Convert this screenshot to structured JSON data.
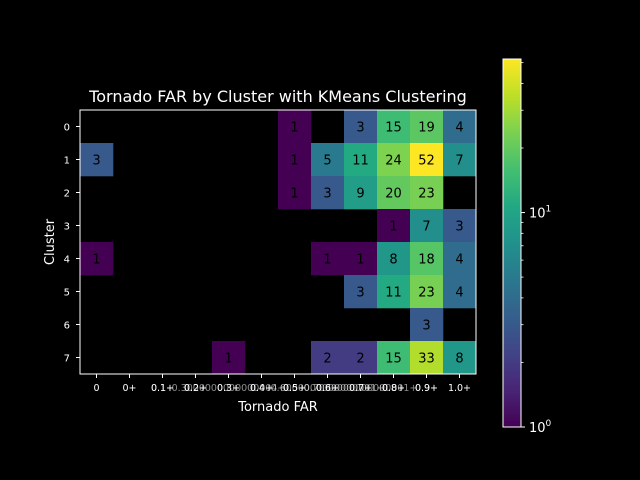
{
  "chart_data": {
    "type": "heatmap",
    "title": "Tornado FAR by Cluster with KMeans Clustering",
    "xlabel": "Tornado FAR",
    "ylabel": "Cluster",
    "x_tick_labels": [
      "0",
      "0+",
      "0.1+",
      "0.2+",
      "0.3+",
      "0.4+",
      "0.5+",
      "0.6+",
      "0.7+",
      "0.8+",
      "0.9+",
      "1.0+"
    ],
    "x_tick_labels_overlapped": [
      "0.1+",
      "0.2+",
      "0.3000000000000004+",
      "0.4+",
      "0.5+",
      "0.6000000000000001+",
      "0.7000000000000001+",
      "0.8+",
      "0.9+"
    ],
    "y_tick_labels": [
      "0",
      "1",
      "2",
      "3",
      "4",
      "5",
      "6",
      "7"
    ],
    "color_scale": "log",
    "colormap": "viridis",
    "colorbar_range": [
      1,
      52
    ],
    "colorbar_tick_labels": [
      "10^0",
      "10^1"
    ],
    "cells": [
      {
        "row": 0,
        "col": 6,
        "value": 1
      },
      {
        "row": 0,
        "col": 8,
        "value": 3
      },
      {
        "row": 0,
        "col": 9,
        "value": 15
      },
      {
        "row": 0,
        "col": 10,
        "value": 19
      },
      {
        "row": 0,
        "col": 11,
        "value": 4
      },
      {
        "row": 1,
        "col": 0,
        "value": 3
      },
      {
        "row": 1,
        "col": 6,
        "value": 1
      },
      {
        "row": 1,
        "col": 7,
        "value": 5
      },
      {
        "row": 1,
        "col": 8,
        "value": 11
      },
      {
        "row": 1,
        "col": 9,
        "value": 24
      },
      {
        "row": 1,
        "col": 10,
        "value": 52
      },
      {
        "row": 1,
        "col": 11,
        "value": 7
      },
      {
        "row": 2,
        "col": 6,
        "value": 1
      },
      {
        "row": 2,
        "col": 7,
        "value": 3
      },
      {
        "row": 2,
        "col": 8,
        "value": 9
      },
      {
        "row": 2,
        "col": 9,
        "value": 20
      },
      {
        "row": 2,
        "col": 10,
        "value": 23
      },
      {
        "row": 3,
        "col": 9,
        "value": 1
      },
      {
        "row": 3,
        "col": 10,
        "value": 7
      },
      {
        "row": 3,
        "col": 11,
        "value": 3
      },
      {
        "row": 4,
        "col": 0,
        "value": 1
      },
      {
        "row": 4,
        "col": 7,
        "value": 1
      },
      {
        "row": 4,
        "col": 8,
        "value": 1
      },
      {
        "row": 4,
        "col": 9,
        "value": 8
      },
      {
        "row": 4,
        "col": 10,
        "value": 18
      },
      {
        "row": 4,
        "col": 11,
        "value": 4
      },
      {
        "row": 5,
        "col": 8,
        "value": 3
      },
      {
        "row": 5,
        "col": 9,
        "value": 11
      },
      {
        "row": 5,
        "col": 10,
        "value": 23
      },
      {
        "row": 5,
        "col": 11,
        "value": 4
      },
      {
        "row": 6,
        "col": 10,
        "value": 3
      },
      {
        "row": 7,
        "col": 4,
        "value": 1
      },
      {
        "row": 7,
        "col": 7,
        "value": 2
      },
      {
        "row": 7,
        "col": 8,
        "value": 2
      },
      {
        "row": 7,
        "col": 9,
        "value": 15
      },
      {
        "row": 7,
        "col": 10,
        "value": 33
      },
      {
        "row": 7,
        "col": 11,
        "value": 8
      }
    ]
  }
}
